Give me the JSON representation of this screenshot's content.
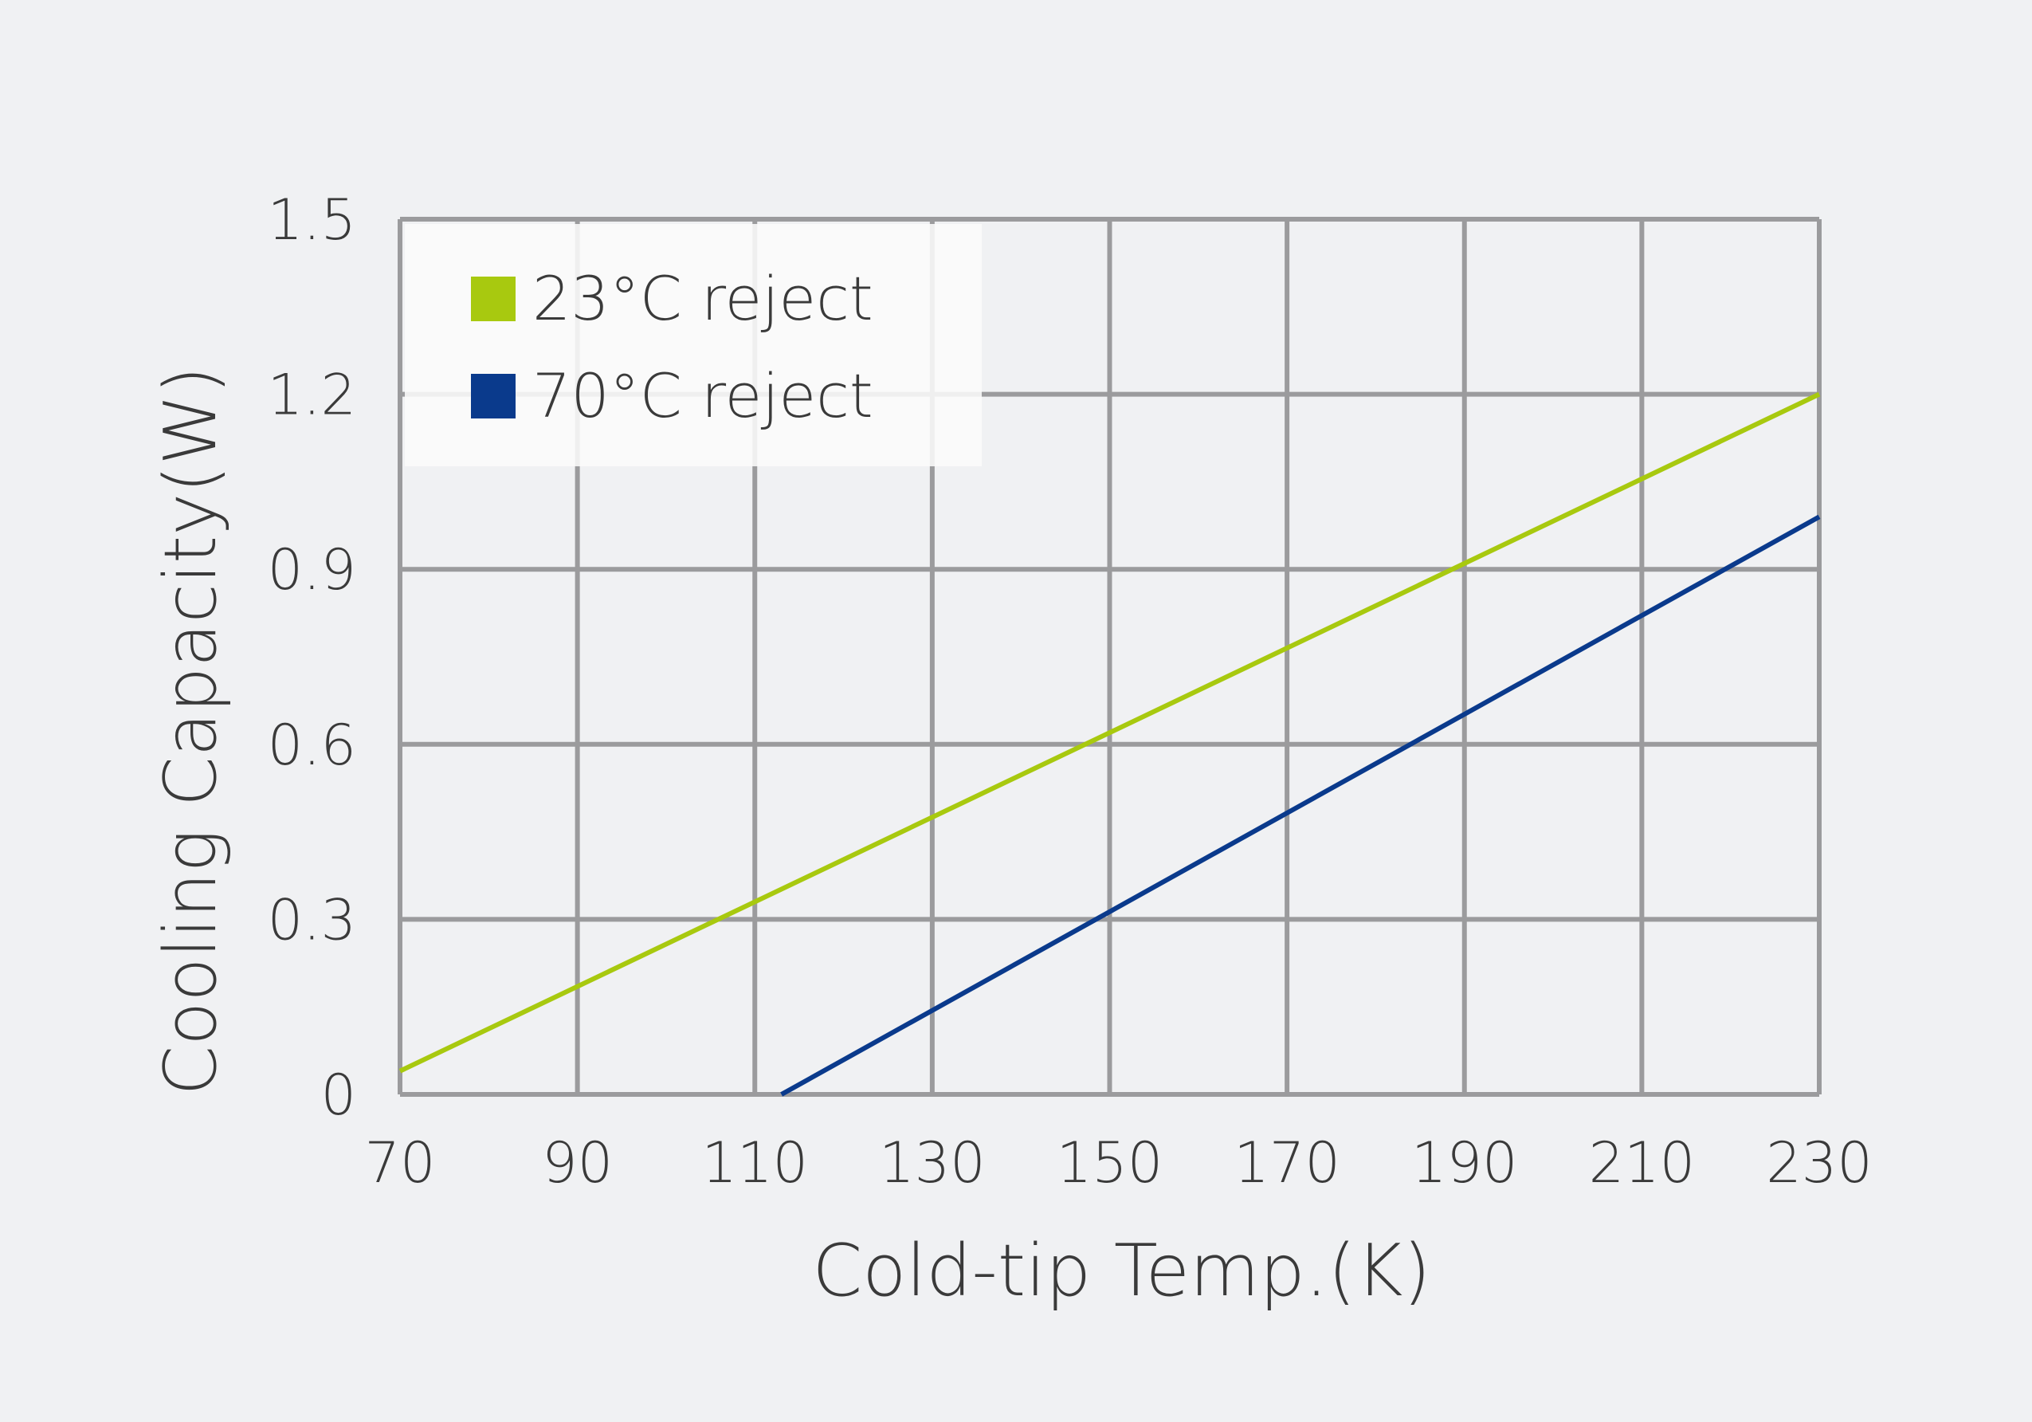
{
  "chart_data": {
    "type": "line",
    "title": "",
    "xlabel": "Cold-tip Temp.(K)",
    "ylabel": "Cooling Capacity(W)",
    "xlim": [
      70,
      230
    ],
    "ylim": [
      0,
      1.5
    ],
    "x_ticks": [
      "70",
      "90",
      "110",
      "130",
      "150",
      "170",
      "190",
      "210",
      "230"
    ],
    "y_ticks": [
      "0",
      "0.3",
      "0.6",
      "0.9",
      "1.2",
      "1.5"
    ],
    "grid": true,
    "legend_position": "top-left",
    "series": [
      {
        "name": "23°C reject",
        "color": "#a8c90f",
        "x": [
          70,
          230
        ],
        "y": [
          0.04,
          1.2
        ]
      },
      {
        "name": "70°C reject",
        "color": "#0a3a8c",
        "x": [
          113,
          230
        ],
        "y": [
          0.0,
          0.99
        ]
      }
    ]
  },
  "colors": {
    "background": "#f0f1f3",
    "grid": "#9b9b9d",
    "legend_box": "#fafafb",
    "text": "#3a3a3a"
  }
}
